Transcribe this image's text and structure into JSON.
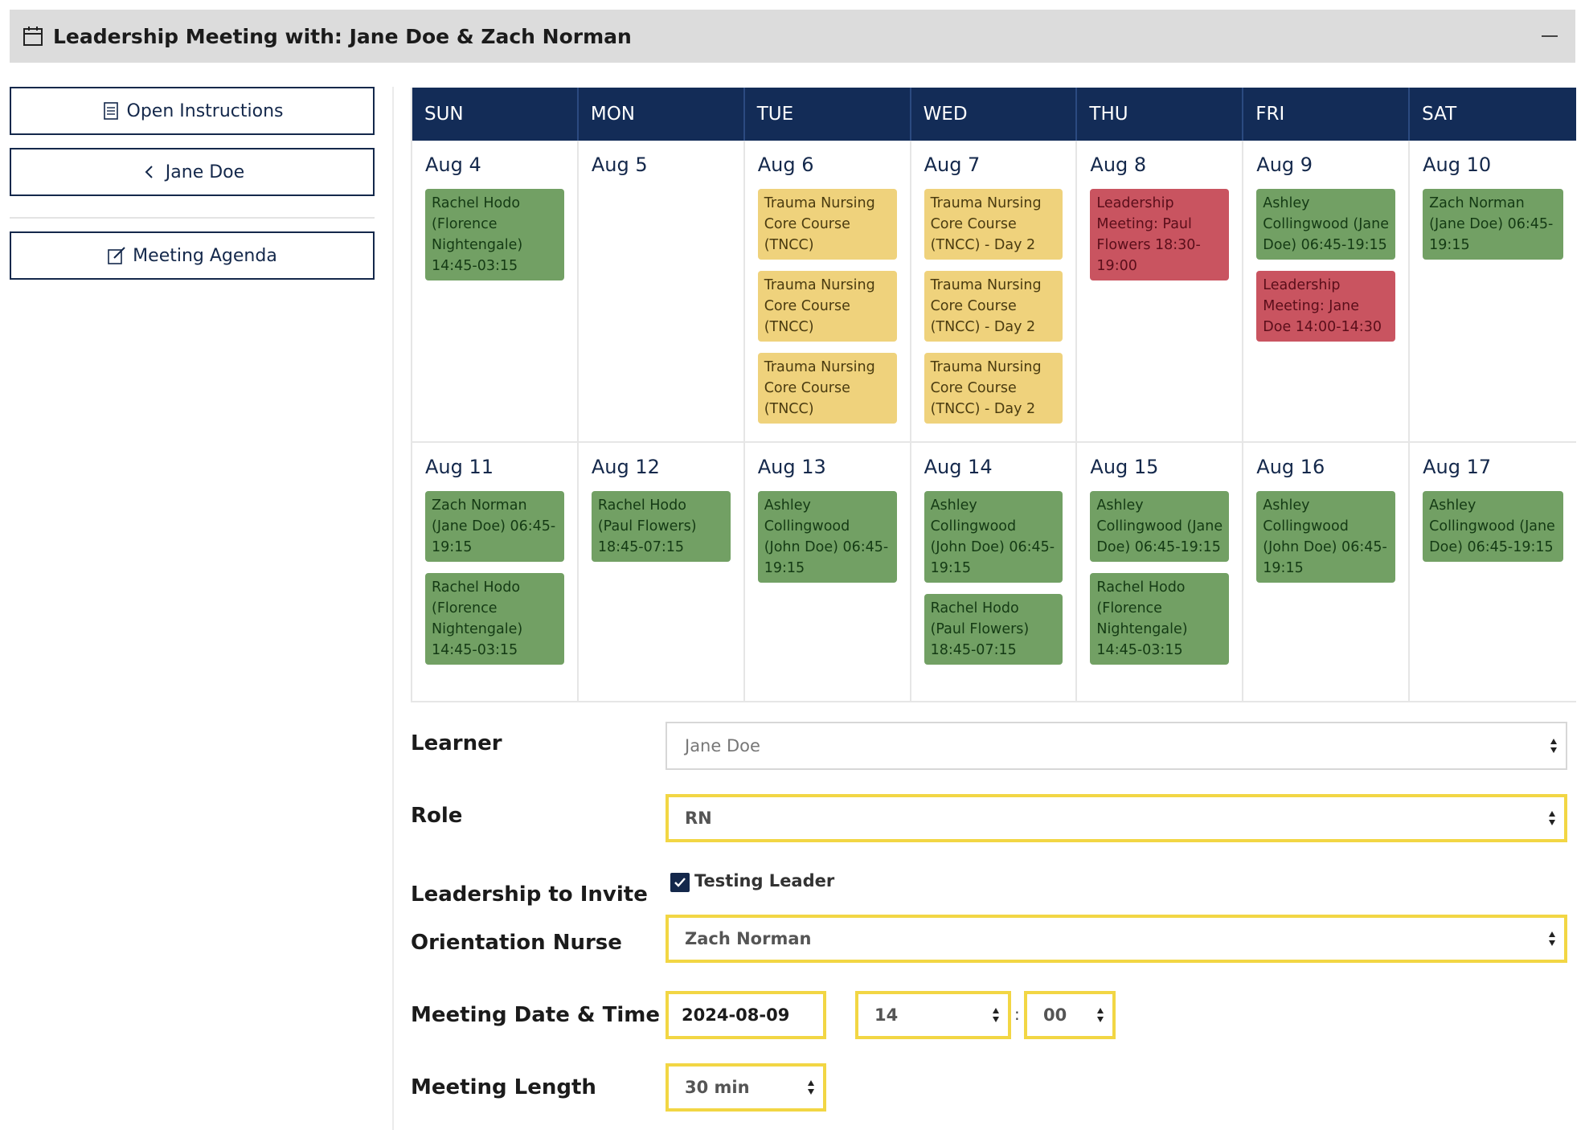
{
  "header": {
    "title": "Leadership Meeting with: Jane Doe & Zach Norman",
    "icon": "calendar-icon"
  },
  "sidebar": {
    "open_instructions": "Open Instructions",
    "back_label": "Jane Doe",
    "meeting_agenda": "Meeting Agenda"
  },
  "calendar": {
    "day_names": [
      "SUN",
      "MON",
      "TUE",
      "WED",
      "THU",
      "FRI",
      "SAT"
    ],
    "weeks": [
      [
        {
          "date": "Aug 4",
          "events": [
            {
              "text": "Rachel Hodo (Florence Nightengale) 14:45-03:15",
              "color": "green"
            }
          ]
        },
        {
          "date": "Aug 5",
          "events": []
        },
        {
          "date": "Aug 6",
          "events": [
            {
              "text": "Trauma Nursing Core Course (TNCC)",
              "color": "yellow"
            },
            {
              "text": "Trauma Nursing Core Course (TNCC)",
              "color": "yellow"
            },
            {
              "text": "Trauma Nursing Core Course (TNCC)",
              "color": "yellow"
            }
          ]
        },
        {
          "date": "Aug 7",
          "events": [
            {
              "text": "Trauma Nursing Core Course (TNCC) - Day 2",
              "color": "yellow"
            },
            {
              "text": "Trauma Nursing Core Course (TNCC) - Day 2",
              "color": "yellow"
            },
            {
              "text": "Trauma Nursing Core Course (TNCC) - Day 2",
              "color": "yellow"
            }
          ]
        },
        {
          "date": "Aug 8",
          "events": [
            {
              "text": "Leadership Meeting: Paul Flowers 18:30-19:00",
              "color": "red"
            }
          ]
        },
        {
          "date": "Aug 9",
          "events": [
            {
              "text": "Ashley Collingwood (Jane Doe) 06:45-19:15",
              "color": "green"
            },
            {
              "text": "Leadership Meeting: Jane Doe 14:00-14:30",
              "color": "red"
            }
          ]
        },
        {
          "date": "Aug 10",
          "events": [
            {
              "text": "Zach Norman (Jane Doe) 06:45-19:15",
              "color": "green"
            }
          ]
        }
      ],
      [
        {
          "date": "Aug 11",
          "events": [
            {
              "text": "Zach Norman (Jane Doe) 06:45-19:15",
              "color": "green"
            },
            {
              "text": "Rachel Hodo (Florence Nightengale) 14:45-03:15",
              "color": "green"
            }
          ]
        },
        {
          "date": "Aug 12",
          "events": [
            {
              "text": "Rachel Hodo (Paul Flowers) 18:45-07:15",
              "color": "green"
            }
          ]
        },
        {
          "date": "Aug 13",
          "events": [
            {
              "text": "Ashley Collingwood (John Doe) 06:45-19:15",
              "color": "green"
            }
          ]
        },
        {
          "date": "Aug 14",
          "events": [
            {
              "text": "Ashley Collingwood (John Doe) 06:45-19:15",
              "color": "green"
            },
            {
              "text": "Rachel Hodo (Paul Flowers) 18:45-07:15",
              "color": "green"
            }
          ]
        },
        {
          "date": "Aug 15",
          "events": [
            {
              "text": "Ashley Collingwood (Jane Doe) 06:45-19:15",
              "color": "green"
            },
            {
              "text": "Rachel Hodo (Florence Nightengale) 14:45-03:15",
              "color": "green"
            }
          ]
        },
        {
          "date": "Aug 16",
          "events": [
            {
              "text": "Ashley Collingwood (John Doe) 06:45-19:15",
              "color": "green"
            }
          ]
        },
        {
          "date": "Aug 17",
          "events": [
            {
              "text": "Ashley Collingwood (Jane Doe) 06:45-19:15",
              "color": "green"
            }
          ]
        }
      ]
    ]
  },
  "form": {
    "learner_label": "Learner",
    "learner_value": "Jane Doe",
    "role_label": "Role",
    "role_value": "RN",
    "leadership_label": "Leadership to Invite",
    "leadership_option": "Testing Leader",
    "leadership_checked": true,
    "orientation_label": "Orientation Nurse",
    "orientation_value": "Zach Norman",
    "date_label": "Meeting Date & Time",
    "date_value": "2024-08-09",
    "hour_value": "14",
    "time_separator": ":",
    "minute_value": "00",
    "length_label": "Meeting Length",
    "length_value": "30 min"
  },
  "colors": {
    "navy": "#132c57",
    "green_event": "#72a064",
    "yellow_event": "#efd27c",
    "red_event": "#c95460",
    "highlight_border": "#f2d644"
  }
}
